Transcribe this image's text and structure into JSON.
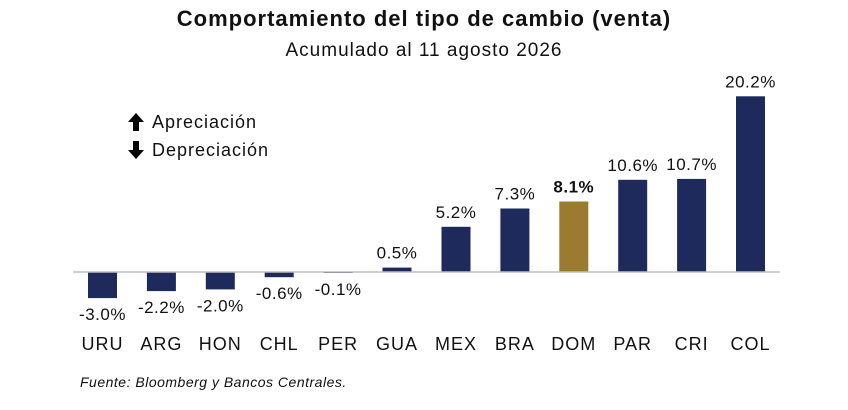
{
  "title": "Comportamiento del tipo de cambio (venta)",
  "subtitle": "Acumulado al 11 agosto 2026",
  "legend": {
    "up_label": "Apreciación",
    "down_label": "Depreciación"
  },
  "source": "Fuente: Bloomberg y Bancos Centrales.",
  "colors": {
    "bar": "#1f2a5c",
    "highlight": "#9a7b2f",
    "axis": "#bfbfbf"
  },
  "chart_data": {
    "type": "bar",
    "categories": [
      "URU",
      "ARG",
      "HON",
      "CHL",
      "PER",
      "GUA",
      "MEX",
      "BRA",
      "DOM",
      "PAR",
      "CRI",
      "COL"
    ],
    "values": [
      -3.0,
      -2.2,
      -2.0,
      -0.6,
      -0.1,
      0.5,
      5.2,
      7.3,
      8.1,
      10.6,
      10.7,
      20.2
    ],
    "value_labels": [
      "-3.0%",
      "-2.2%",
      "-2.0%",
      "-0.6%",
      "-0.1%",
      "0.5%",
      "5.2%",
      "7.3%",
      "8.1%",
      "10.6%",
      "10.7%",
      "20.2%"
    ],
    "highlight_category": "DOM",
    "title": "Comportamiento del tipo de cambio (venta)",
    "subtitle": "Acumulado al 11 agosto 2026",
    "xlabel": "",
    "ylabel": "",
    "ylim": [
      -4,
      20.2
    ],
    "grid": false,
    "legend_position": "top-left"
  }
}
